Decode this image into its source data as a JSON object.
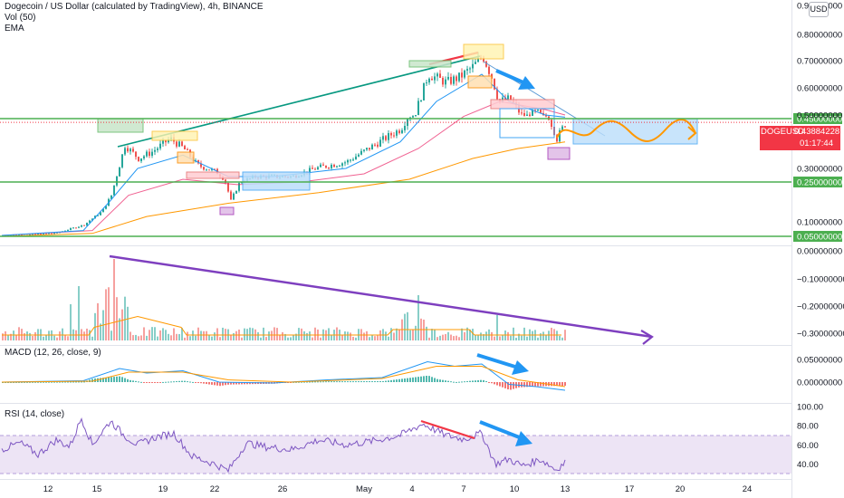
{
  "legend": {
    "title": "Dogecoin / US Dollar (calculated by TradingView), 4h, BINANCE",
    "vol": "Vol (50)",
    "ema": "EMA",
    "macd": "MACD (12, 26, close, 9)",
    "rsi": "RSI (14, close)"
  },
  "currency_button": "USD",
  "price_tag": {
    "symbol": "DOGEUSD",
    "price": "0.43884228",
    "countdown": "01:17:44"
  },
  "colors": {
    "up": "#26a69a",
    "down": "#ef5350",
    "support": "#4caf50",
    "trendline": "#089981",
    "bear_line": "#f23645",
    "arrow": "#2196f3",
    "vol_trend": "#7e3fbf",
    "ema_slow": "#ff9800",
    "ema_fast": "#2196f3",
    "rsi": "#7e57c2",
    "rsi_band": "#f3e5f5",
    "projection": "#ff9800"
  },
  "chart_data": [
    {
      "type": "candlestick",
      "title": "Dogecoin / US Dollar (calculated by TradingView), 4h, BINANCE",
      "x_ticks": [
        "12",
        "15",
        "19",
        "22",
        "26",
        "May",
        "4",
        "7",
        "10",
        "13",
        "17",
        "20",
        "24"
      ],
      "y_ticks": [
        "0.90000000",
        "0.80000000",
        "0.70000000",
        "0.60000000",
        "0.50000000",
        "0.45000000",
        "0.30000000",
        "0.25000000",
        "0.10000000",
        "0.05000000"
      ],
      "ylim": [
        0.03,
        0.9
      ],
      "support_levels": [
        0.45,
        0.25,
        0.05
      ],
      "level_labels": [
        "0.45000000",
        "0.25000000",
        "0.05000000"
      ],
      "last_price": 0.43884228,
      "close_path": [
        {
          "x": 0,
          "y": 0.053
        },
        {
          "x": 30,
          "y": 0.056
        },
        {
          "x": 60,
          "y": 0.062
        },
        {
          "x": 90,
          "y": 0.09
        },
        {
          "x": 110,
          "y": 0.14
        },
        {
          "x": 120,
          "y": 0.2
        },
        {
          "x": 128,
          "y": 0.3
        },
        {
          "x": 135,
          "y": 0.37
        },
        {
          "x": 150,
          "y": 0.33
        },
        {
          "x": 165,
          "y": 0.35
        },
        {
          "x": 185,
          "y": 0.39
        },
        {
          "x": 200,
          "y": 0.36
        },
        {
          "x": 215,
          "y": 0.31
        },
        {
          "x": 235,
          "y": 0.29
        },
        {
          "x": 245,
          "y": 0.26
        },
        {
          "x": 252,
          "y": 0.18
        },
        {
          "x": 262,
          "y": 0.25
        },
        {
          "x": 280,
          "y": 0.27
        },
        {
          "x": 300,
          "y": 0.27
        },
        {
          "x": 320,
          "y": 0.27
        },
        {
          "x": 345,
          "y": 0.3
        },
        {
          "x": 380,
          "y": 0.32
        },
        {
          "x": 410,
          "y": 0.37
        },
        {
          "x": 440,
          "y": 0.42
        },
        {
          "x": 455,
          "y": 0.5
        },
        {
          "x": 470,
          "y": 0.65
        },
        {
          "x": 490,
          "y": 0.62
        },
        {
          "x": 505,
          "y": 0.64
        },
        {
          "x": 520,
          "y": 0.68
        },
        {
          "x": 530,
          "y": 0.72
        },
        {
          "x": 540,
          "y": 0.64
        },
        {
          "x": 548,
          "y": 0.55
        },
        {
          "x": 560,
          "y": 0.56
        },
        {
          "x": 575,
          "y": 0.49
        },
        {
          "x": 590,
          "y": 0.51
        },
        {
          "x": 600,
          "y": 0.48
        },
        {
          "x": 612,
          "y": 0.39
        },
        {
          "x": 622,
          "y": 0.44
        }
      ],
      "ema_fast": [
        {
          "x": 0,
          "y": 0.053
        },
        {
          "x": 90,
          "y": 0.07
        },
        {
          "x": 120,
          "y": 0.18
        },
        {
          "x": 150,
          "y": 0.3
        },
        {
          "x": 200,
          "y": 0.34
        },
        {
          "x": 250,
          "y": 0.27
        },
        {
          "x": 300,
          "y": 0.27
        },
        {
          "x": 380,
          "y": 0.3
        },
        {
          "x": 440,
          "y": 0.38
        },
        {
          "x": 480,
          "y": 0.55
        },
        {
          "x": 530,
          "y": 0.65
        },
        {
          "x": 560,
          "y": 0.55
        },
        {
          "x": 600,
          "y": 0.5
        },
        {
          "x": 622,
          "y": 0.47
        }
      ],
      "ema_mid": [
        {
          "x": 0,
          "y": 0.053
        },
        {
          "x": 100,
          "y": 0.07
        },
        {
          "x": 140,
          "y": 0.2
        },
        {
          "x": 200,
          "y": 0.26
        },
        {
          "x": 260,
          "y": 0.24
        },
        {
          "x": 330,
          "y": 0.25
        },
        {
          "x": 400,
          "y": 0.28
        },
        {
          "x": 460,
          "y": 0.36
        },
        {
          "x": 510,
          "y": 0.48
        },
        {
          "x": 550,
          "y": 0.55
        },
        {
          "x": 600,
          "y": 0.52
        },
        {
          "x": 622,
          "y": 0.5
        }
      ],
      "ema_slow": [
        {
          "x": 0,
          "y": 0.05
        },
        {
          "x": 100,
          "y": 0.06
        },
        {
          "x": 160,
          "y": 0.12
        },
        {
          "x": 250,
          "y": 0.17
        },
        {
          "x": 350,
          "y": 0.21
        },
        {
          "x": 450,
          "y": 0.26
        },
        {
          "x": 520,
          "y": 0.33
        },
        {
          "x": 570,
          "y": 0.36
        },
        {
          "x": 622,
          "y": 0.38
        }
      ]
    },
    {
      "type": "bar",
      "title": "Vol (50)",
      "y_ticks": [
        "0.00000000",
        "−0.10000000",
        "−0.20000000",
        "−0.30000000"
      ],
      "ylim": [
        -0.33,
        0.0
      ]
    },
    {
      "type": "line",
      "title": "MACD (12, 26, close, 9)",
      "y_ticks": [
        "0.05000000",
        "0.00000000"
      ],
      "ylim": [
        -0.03,
        0.08
      ],
      "macd": [
        {
          "x": 0,
          "y": 0.0
        },
        {
          "x": 90,
          "y": 0.003
        },
        {
          "x": 130,
          "y": 0.03
        },
        {
          "x": 160,
          "y": 0.02
        },
        {
          "x": 200,
          "y": 0.025
        },
        {
          "x": 240,
          "y": 0.0
        },
        {
          "x": 300,
          "y": -0.002
        },
        {
          "x": 360,
          "y": 0.005
        },
        {
          "x": 420,
          "y": 0.01
        },
        {
          "x": 470,
          "y": 0.045
        },
        {
          "x": 500,
          "y": 0.035
        },
        {
          "x": 530,
          "y": 0.04
        },
        {
          "x": 560,
          "y": -0.005
        },
        {
          "x": 590,
          "y": -0.01
        },
        {
          "x": 622,
          "y": -0.018
        }
      ],
      "signal": [
        {
          "x": 0,
          "y": 0.0
        },
        {
          "x": 100,
          "y": 0.002
        },
        {
          "x": 140,
          "y": 0.022
        },
        {
          "x": 200,
          "y": 0.022
        },
        {
          "x": 250,
          "y": 0.005
        },
        {
          "x": 320,
          "y": 0.0
        },
        {
          "x": 420,
          "y": 0.008
        },
        {
          "x": 480,
          "y": 0.035
        },
        {
          "x": 530,
          "y": 0.035
        },
        {
          "x": 570,
          "y": 0.005
        },
        {
          "x": 622,
          "y": -0.01
        }
      ]
    },
    {
      "type": "line",
      "title": "RSI (14, close)",
      "y_ticks": [
        "100.00",
        "80.00",
        "60.00",
        "40.00"
      ],
      "ylim": [
        28,
        100
      ],
      "band": [
        30,
        70
      ],
      "rsi": [
        {
          "x": 0,
          "y": 55
        },
        {
          "x": 20,
          "y": 62
        },
        {
          "x": 40,
          "y": 50
        },
        {
          "x": 60,
          "y": 65
        },
        {
          "x": 75,
          "y": 58
        },
        {
          "x": 88,
          "y": 88
        },
        {
          "x": 100,
          "y": 60
        },
        {
          "x": 120,
          "y": 85
        },
        {
          "x": 135,
          "y": 70
        },
        {
          "x": 150,
          "y": 60
        },
        {
          "x": 170,
          "y": 68
        },
        {
          "x": 190,
          "y": 72
        },
        {
          "x": 210,
          "y": 48
        },
        {
          "x": 235,
          "y": 40
        },
        {
          "x": 250,
          "y": 33
        },
        {
          "x": 270,
          "y": 62
        },
        {
          "x": 290,
          "y": 58
        },
        {
          "x": 320,
          "y": 55
        },
        {
          "x": 350,
          "y": 65
        },
        {
          "x": 380,
          "y": 60
        },
        {
          "x": 410,
          "y": 64
        },
        {
          "x": 440,
          "y": 70
        },
        {
          "x": 465,
          "y": 82
        },
        {
          "x": 490,
          "y": 70
        },
        {
          "x": 510,
          "y": 66
        },
        {
          "x": 530,
          "y": 72
        },
        {
          "x": 545,
          "y": 40
        },
        {
          "x": 560,
          "y": 45
        },
        {
          "x": 575,
          "y": 38
        },
        {
          "x": 595,
          "y": 45
        },
        {
          "x": 612,
          "y": 34
        },
        {
          "x": 622,
          "y": 42
        }
      ]
    }
  ]
}
